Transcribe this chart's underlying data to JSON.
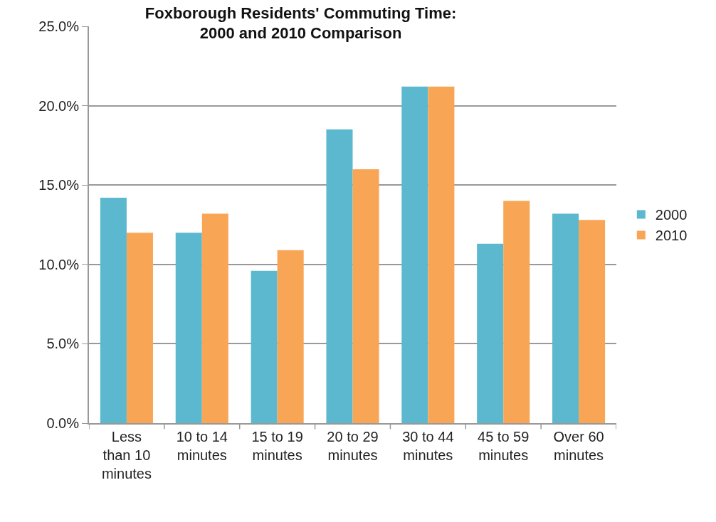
{
  "chart_data": {
    "type": "bar",
    "title": "Foxborough Residents' Commuting Time:\n2000 and 2010 Comparison",
    "categories": [
      "Less\nthan 10\nminutes",
      "10 to 14\nminutes",
      "15 to 19\nminutes",
      "20 to 29\nminutes",
      "30 to 44\nminutes",
      "45 to 59\nminutes",
      "Over 60\nminutes"
    ],
    "series": [
      {
        "name": "2000",
        "color": "#5bb8cf",
        "values": [
          14.2,
          12.0,
          9.6,
          18.5,
          21.2,
          11.3,
          13.2
        ]
      },
      {
        "name": "2010",
        "color": "#f8a656",
        "values": [
          12.0,
          13.2,
          10.9,
          16.0,
          21.2,
          14.0,
          12.8
        ]
      }
    ],
    "ylim": [
      0,
      25
    ],
    "yticks": [
      {
        "value": 0,
        "label": "0.0%"
      },
      {
        "value": 5,
        "label": "5.0%"
      },
      {
        "value": 10,
        "label": "10.0%"
      },
      {
        "value": 15,
        "label": "15.0%"
      },
      {
        "value": 20,
        "label": "20.0%"
      },
      {
        "value": 25,
        "label": "25.0%"
      }
    ],
    "grid": "y",
    "legend": "right"
  }
}
